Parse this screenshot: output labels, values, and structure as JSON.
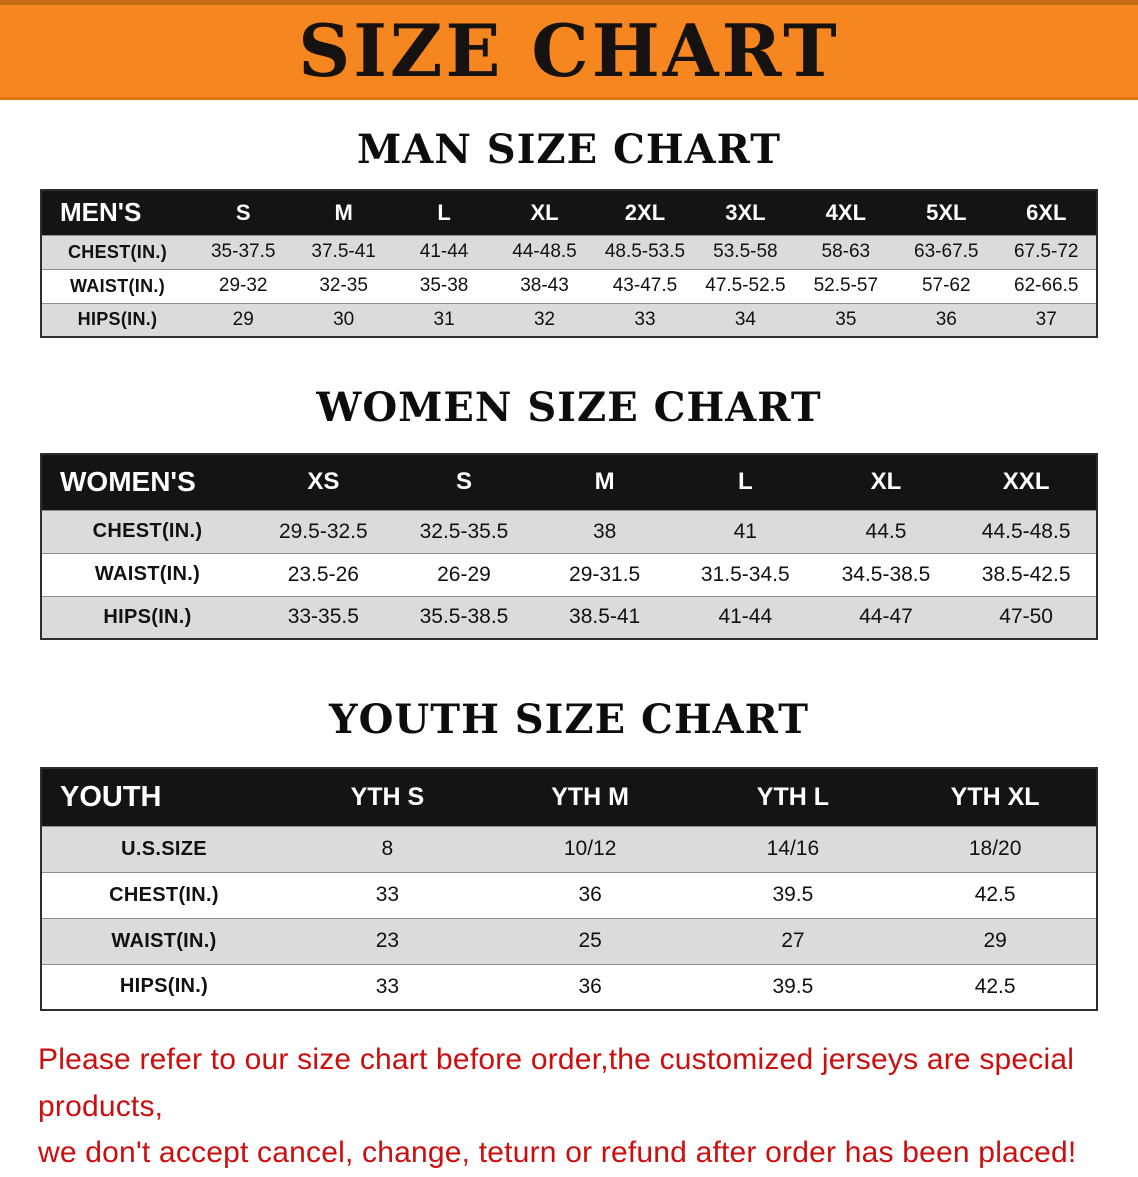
{
  "banner": {
    "title": "SIZE CHART"
  },
  "colors": {
    "banner_bg": "#f6861f",
    "table_header_bg": "#141414",
    "stripe_row_bg": "#dbdbdb",
    "disclaimer_text": "#cc0e0e"
  },
  "sections": [
    {
      "heading": "MAN SIZE CHART",
      "table": {
        "title": "MEN'S",
        "columns": [
          "S",
          "M",
          "L",
          "XL",
          "2XL",
          "3XL",
          "4XL",
          "5XL",
          "6XL"
        ],
        "rows": [
          {
            "label": "CHEST(IN.)",
            "values": [
              "35-37.5",
              "37.5-41",
              "41-44",
              "44-48.5",
              "48.5-53.5",
              "53.5-58",
              "58-63",
              "63-67.5",
              "67.5-72"
            ]
          },
          {
            "label": "WAIST(IN.)",
            "values": [
              "29-32",
              "32-35",
              "35-38",
              "38-43",
              "43-47.5",
              "47.5-52.5",
              "52.5-57",
              "57-62",
              "62-66.5"
            ]
          },
          {
            "label": "HIPS(IN.)",
            "values": [
              "29",
              "30",
              "31",
              "32",
              "33",
              "34",
              "35",
              "36",
              "37"
            ]
          }
        ]
      }
    },
    {
      "heading": "WOMEN SIZE CHART",
      "table": {
        "title": "WOMEN'S",
        "columns": [
          "XS",
          "S",
          "M",
          "L",
          "XL",
          "XXL"
        ],
        "rows": [
          {
            "label": "CHEST(IN.)",
            "values": [
              "29.5-32.5",
              "32.5-35.5",
              "38",
              "41",
              "44.5",
              "44.5-48.5"
            ]
          },
          {
            "label": "WAIST(IN.)",
            "values": [
              "23.5-26",
              "26-29",
              "29-31.5",
              "31.5-34.5",
              "34.5-38.5",
              "38.5-42.5"
            ]
          },
          {
            "label": "HIPS(IN.)",
            "values": [
              "33-35.5",
              "35.5-38.5",
              "38.5-41",
              "41-44",
              "44-47",
              "47-50"
            ]
          }
        ]
      }
    },
    {
      "heading": "YOUTH SIZE CHART",
      "table": {
        "title": "YOUTH",
        "columns": [
          "YTH S",
          "YTH M",
          "YTH L",
          "YTH XL"
        ],
        "rows": [
          {
            "label": "U.S.SIZE",
            "values": [
              "8",
              "10/12",
              "14/16",
              "18/20"
            ]
          },
          {
            "label": "CHEST(IN.)",
            "values": [
              "33",
              "36",
              "39.5",
              "42.5"
            ]
          },
          {
            "label": "WAIST(IN.)",
            "values": [
              "23",
              "25",
              "27",
              "29"
            ]
          },
          {
            "label": "HIPS(IN.)",
            "values": [
              "33",
              "36",
              "39.5",
              "42.5"
            ]
          }
        ]
      }
    }
  ],
  "disclaimer": {
    "lines": [
      "Please refer to our size chart before order,the customized jerseys are special products,",
      "we don't accept cancel, change, teturn or refund after order has been placed!"
    ]
  }
}
